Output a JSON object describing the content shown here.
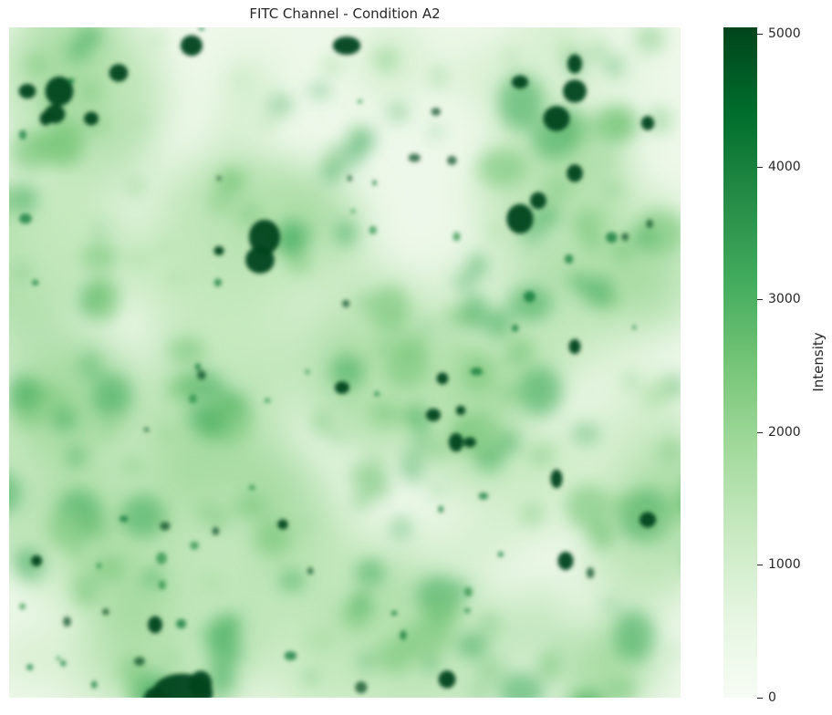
{
  "title": "FITC Channel - Condition A2",
  "colorbar": {
    "label": "Intensity",
    "min": 0,
    "max": 5050,
    "ticks": [
      "0",
      "1000",
      "2000",
      "3000",
      "4000",
      "5000"
    ],
    "colormap": "Greens",
    "colors": [
      "#f7fcf5",
      "#e5f5e0",
      "#c7e9c0",
      "#a1d99b",
      "#74c476",
      "#41ab5d",
      "#238b45",
      "#006d2c",
      "#00441b"
    ]
  },
  "image": {
    "description_hint": "fluorescence micrograph, green intensity map"
  }
}
